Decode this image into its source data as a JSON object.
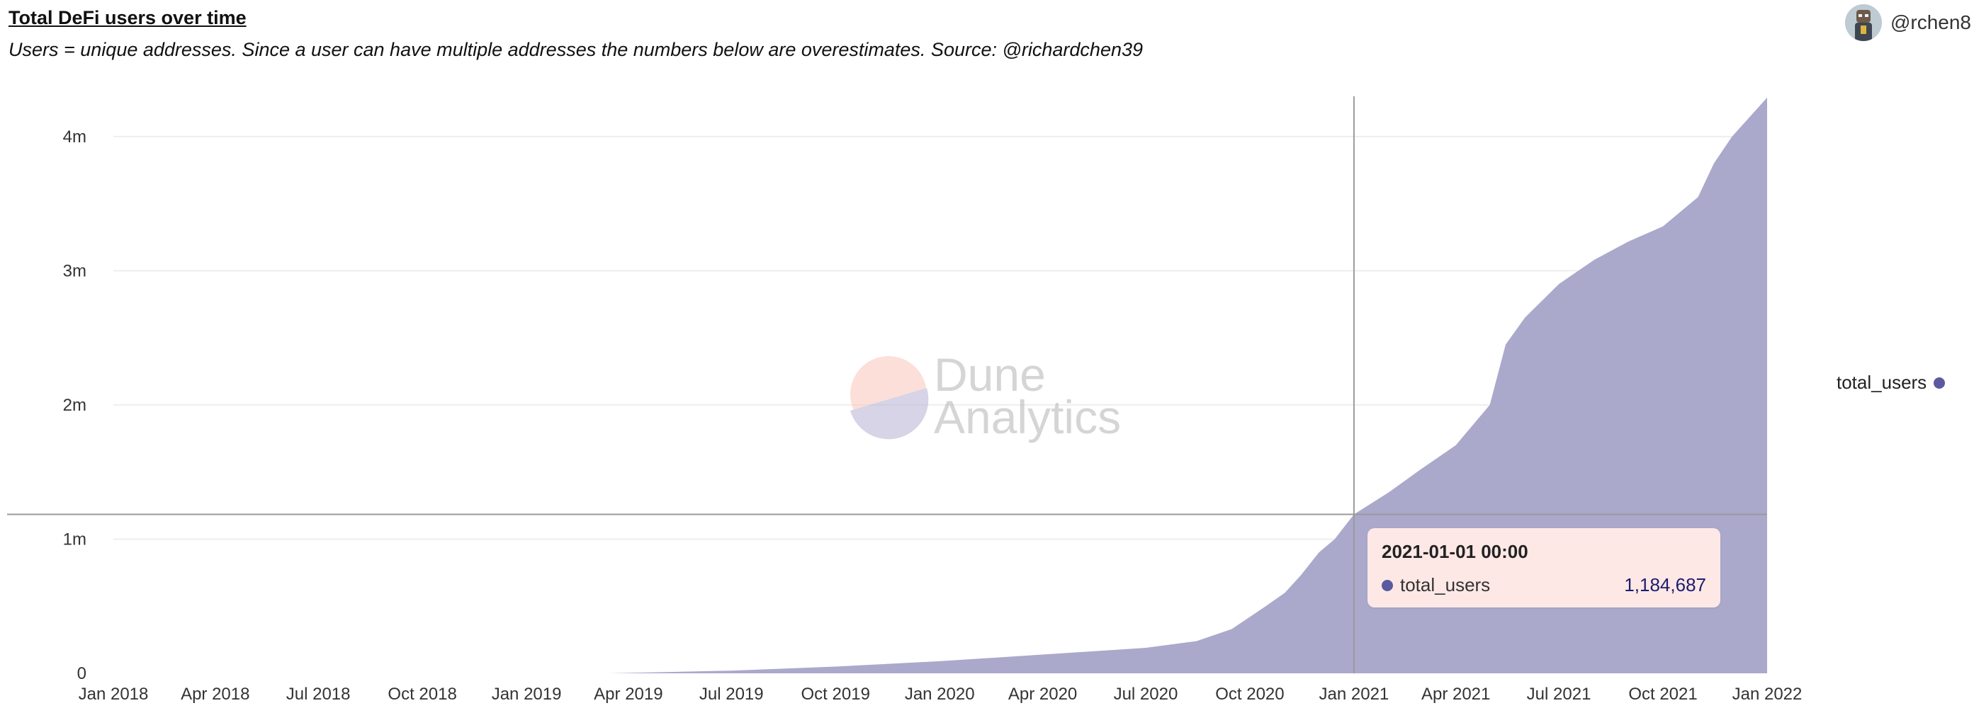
{
  "header": {
    "title": "Total DeFi users over time",
    "subtitle": "Users = unique addresses. Since a user can have multiple addresses the numbers below are overestimates. Source: @richardchen39"
  },
  "user": {
    "handle": "@rchen8",
    "icon": "avatar-icon"
  },
  "watermark": {
    "line1": "Dune",
    "line2": "Analytics"
  },
  "legend": {
    "label": "total_users",
    "color": "#5b5a9e"
  },
  "tooltip": {
    "date": "2021-01-01 00:00",
    "series": "total_users",
    "value": "1,184,687"
  },
  "colors": {
    "area_fill": "#aaa9cc",
    "grid": "#eeeeee",
    "crosshair": "#9a9a9a",
    "series": "#5b5a9e"
  },
  "chart_data": {
    "type": "area",
    "title": "Total DeFi users over time",
    "xlabel": "",
    "ylabel": "",
    "x_ticks": [
      "Jan 2018",
      "Apr 2018",
      "Jul 2018",
      "Oct 2018",
      "Jan 2019",
      "Apr 2019",
      "Jul 2019",
      "Oct 2019",
      "Jan 2020",
      "Apr 2020",
      "Jul 2020",
      "Oct 2020",
      "Jan 2021",
      "Apr 2021",
      "Jul 2021",
      "Oct 2021",
      "Jan 2022"
    ],
    "y_ticks": [
      "0",
      "1m",
      "2m",
      "3m",
      "4m"
    ],
    "ylim": [
      0,
      4300000
    ],
    "xlim": [
      "2018-01-01",
      "2022-01-01"
    ],
    "grid": true,
    "legend_position": "right",
    "crosshair": {
      "x": "2021-01-01",
      "y": 1184687
    },
    "series": [
      {
        "name": "total_users",
        "points": [
          [
            "2019-03-15",
            0
          ],
          [
            "2019-07-01",
            20000
          ],
          [
            "2019-10-01",
            50000
          ],
          [
            "2020-01-01",
            90000
          ],
          [
            "2020-04-01",
            140000
          ],
          [
            "2020-07-01",
            190000
          ],
          [
            "2020-08-15",
            240000
          ],
          [
            "2020-09-15",
            330000
          ],
          [
            "2020-10-01",
            420000
          ],
          [
            "2020-10-15",
            500000
          ],
          [
            "2020-11-01",
            600000
          ],
          [
            "2020-11-15",
            730000
          ],
          [
            "2020-12-01",
            900000
          ],
          [
            "2020-12-15",
            1000000
          ],
          [
            "2021-01-01",
            1184687
          ],
          [
            "2021-02-01",
            1350000
          ],
          [
            "2021-03-01",
            1520000
          ],
          [
            "2021-04-01",
            1700000
          ],
          [
            "2021-05-01",
            2000000
          ],
          [
            "2021-05-15",
            2450000
          ],
          [
            "2021-06-01",
            2650000
          ],
          [
            "2021-07-01",
            2900000
          ],
          [
            "2021-08-01",
            3080000
          ],
          [
            "2021-09-01",
            3220000
          ],
          [
            "2021-10-01",
            3330000
          ],
          [
            "2021-11-01",
            3550000
          ],
          [
            "2021-11-15",
            3800000
          ],
          [
            "2021-12-01",
            4000000
          ],
          [
            "2022-01-01",
            4290000
          ]
        ]
      }
    ]
  }
}
